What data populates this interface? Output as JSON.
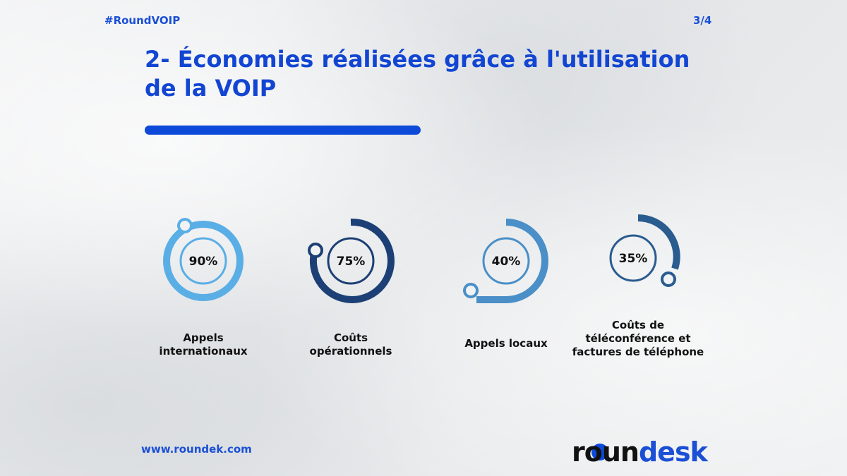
{
  "header": {
    "hashtag": "#RoundVOIP",
    "page_indicator": "3/4"
  },
  "title": {
    "line1": "2- Économies réalisées grâce à l'utilisation",
    "line2": "de la VOIP"
  },
  "colors": {
    "accent": "#0d4ad9",
    "gauge_90": "#5aaee6",
    "gauge_75": "#1c3f75",
    "gauge_40": "#4a8fc8",
    "gauge_35": "#2a5c90"
  },
  "stats": [
    {
      "value_label": "90%",
      "value": 90,
      "label_lines": [
        "Appels",
        "internationaux"
      ]
    },
    {
      "value_label": "75%",
      "value": 75,
      "label_lines": [
        "Coûts",
        "opérationnels"
      ]
    },
    {
      "value_label": "40%",
      "value": 40,
      "label_lines": [
        "Appels locaux"
      ]
    },
    {
      "value_label": "35%",
      "value": 35,
      "label_lines": [
        "Coûts de",
        "téléconférence et",
        "factures de téléphone"
      ]
    }
  ],
  "footer": {
    "url": "www.roundek.com",
    "logo_text": "roundesk"
  }
}
